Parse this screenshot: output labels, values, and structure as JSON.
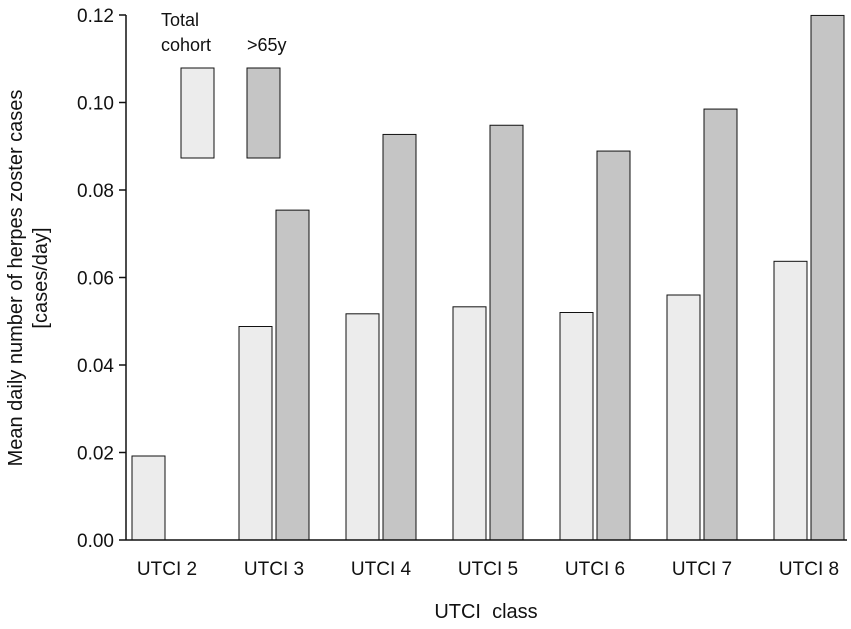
{
  "chart_data": {
    "type": "bar",
    "title": "",
    "xlabel": "UTCI  class",
    "ylabel_lines": [
      "Mean daily number of herpes zoster cases",
      "[cases/day]"
    ],
    "ylim": [
      0,
      0.12
    ],
    "yticks": [
      0.0,
      0.02,
      0.04,
      0.06,
      0.08,
      0.1,
      0.12
    ],
    "ytick_labels": [
      "0.00",
      "0.02",
      "0.04",
      "0.06",
      "0.08",
      "0.10",
      "0.12"
    ],
    "categories": [
      "UTCI 2",
      "UTCI 3",
      "UTCI 4",
      "UTCI 5",
      "UTCI 6",
      "UTCI 7",
      "UTCI 8"
    ],
    "series": [
      {
        "name_lines": [
          "Total",
          "cohort"
        ],
        "color": "#ececec",
        "values": [
          0.0192,
          0.0488,
          0.0517,
          0.0533,
          0.052,
          0.056,
          0.0637
        ]
      },
      {
        "name_lines": [
          ">65y"
        ],
        "color": "#c5c5c5",
        "values": [
          null,
          0.0754,
          0.0927,
          0.0948,
          0.0889,
          0.0985,
          0.1199
        ]
      }
    ],
    "grid": false,
    "legend_placement": "top-left"
  }
}
